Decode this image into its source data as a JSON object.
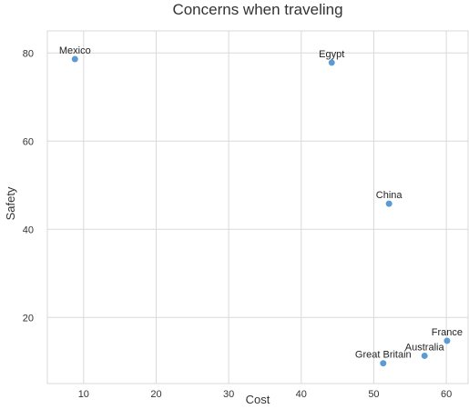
{
  "chart_data": {
    "type": "scatter",
    "title": "Concerns when traveling",
    "xlabel": "Cost",
    "ylabel": "Safety",
    "xlim": [
      5,
      63
    ],
    "ylim": [
      5,
      85
    ],
    "xticks": [
      10,
      20,
      30,
      40,
      50,
      60
    ],
    "yticks": [
      20,
      40,
      60,
      80
    ],
    "grid": true,
    "legend": "none",
    "point_color": "#5b9bd5",
    "points": [
      {
        "label": "Mexico",
        "x": 8.8,
        "y": 78.6
      },
      {
        "label": "Egypt",
        "x": 44.2,
        "y": 77.8
      },
      {
        "label": "China",
        "x": 52.1,
        "y": 45.8
      },
      {
        "label": "France",
        "x": 60.1,
        "y": 14.7
      },
      {
        "label": "Australia",
        "x": 57.0,
        "y": 11.3
      },
      {
        "label": "Great Britain",
        "x": 51.3,
        "y": 9.6
      }
    ]
  }
}
